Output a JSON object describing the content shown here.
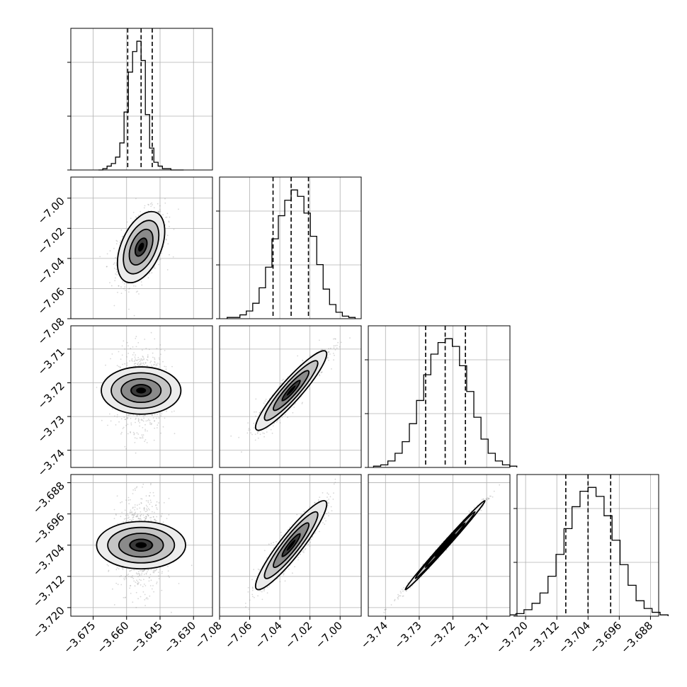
{
  "chart_data": {
    "type": "scatter",
    "variant": "corner-plot",
    "title": "",
    "grid": true,
    "parameters": [
      {
        "label": "",
        "median": -3.6535,
        "q16": -3.6595,
        "q84": -3.6485,
        "std": 0.0053,
        "range": [
          -3.685,
          -3.6215
        ],
        "ticks": [
          -3.675,
          -3.66,
          -3.645,
          -3.63
        ],
        "tick_labels": [
          "−3.675",
          "−3.660",
          "−3.645",
          "−3.630"
        ]
      },
      {
        "label": "",
        "median": -7.0325,
        "q16": -7.0445,
        "q84": -7.021,
        "std": 0.0118,
        "range": [
          -7.08,
          -6.986
        ],
        "ticks": [
          -7.08,
          -7.06,
          -7.04,
          -7.02,
          -7.0
        ],
        "tick_labels": [
          "−7.08",
          "−7.06",
          "−7.04",
          "−7.02",
          "−7.00"
        ]
      },
      {
        "label": "",
        "median": -3.7223,
        "q16": -3.7281,
        "q84": -3.7163,
        "std": 0.0059,
        "range": [
          -3.7451,
          -3.7031
        ],
        "ticks": [
          -3.74,
          -3.73,
          -3.72,
          -3.71
        ],
        "tick_labels": [
          "−3.74",
          "−3.73",
          "−3.72",
          "−3.71"
        ]
      },
      {
        "label": "",
        "median": -3.704,
        "q16": -3.7097,
        "q84": -3.6982,
        "std": 0.0057,
        "range": [
          -3.7222,
          -3.6859
        ],
        "ticks": [
          -3.72,
          -3.712,
          -3.704,
          -3.696,
          -3.688
        ],
        "tick_labels": [
          "−3.720",
          "−3.712",
          "−3.704",
          "−3.696",
          "−3.688"
        ]
      }
    ],
    "correlations": [
      {
        "pair": [
          0,
          1
        ],
        "rho": 0.45
      },
      {
        "pair": [
          0,
          2
        ],
        "rho": 0.0
      },
      {
        "pair": [
          0,
          3
        ],
        "rho": 0.0
      },
      {
        "pair": [
          1,
          2
        ],
        "rho": 0.92
      },
      {
        "pair": [
          1,
          3
        ],
        "rho": 0.92
      },
      {
        "pair": [
          2,
          3
        ],
        "rho": 0.995
      }
    ],
    "histograms": [
      {
        "param": 0,
        "counts": [
          0.0,
          0.01,
          0.03,
          0.05,
          0.1,
          0.21,
          0.45,
          0.76,
          0.92,
          1.0,
          0.85,
          0.43,
          0.17,
          0.06,
          0.03,
          0.01,
          0.01,
          0.0,
          0.0,
          0.0
        ]
      },
      {
        "param": 1,
        "counts": [
          0.01,
          0.01,
          0.03,
          0.06,
          0.12,
          0.24,
          0.4,
          0.62,
          0.8,
          0.92,
          1.0,
          0.95,
          0.82,
          0.64,
          0.42,
          0.23,
          0.11,
          0.05,
          0.02,
          0.01
        ]
      },
      {
        "param": 2,
        "counts": [
          0.01,
          0.02,
          0.05,
          0.11,
          0.2,
          0.34,
          0.52,
          0.72,
          0.88,
          0.97,
          1.0,
          0.94,
          0.79,
          0.59,
          0.39,
          0.22,
          0.11,
          0.05,
          0.02,
          0.01
        ]
      },
      {
        "param": 3,
        "counts": [
          0.01,
          0.02,
          0.05,
          0.1,
          0.18,
          0.31,
          0.48,
          0.68,
          0.85,
          0.97,
          1.0,
          0.93,
          0.78,
          0.59,
          0.4,
          0.24,
          0.12,
          0.06,
          0.03,
          0.01
        ]
      }
    ],
    "contour_levels_sigma": [
      0.5,
      1.0,
      1.5,
      2.0
    ]
  }
}
